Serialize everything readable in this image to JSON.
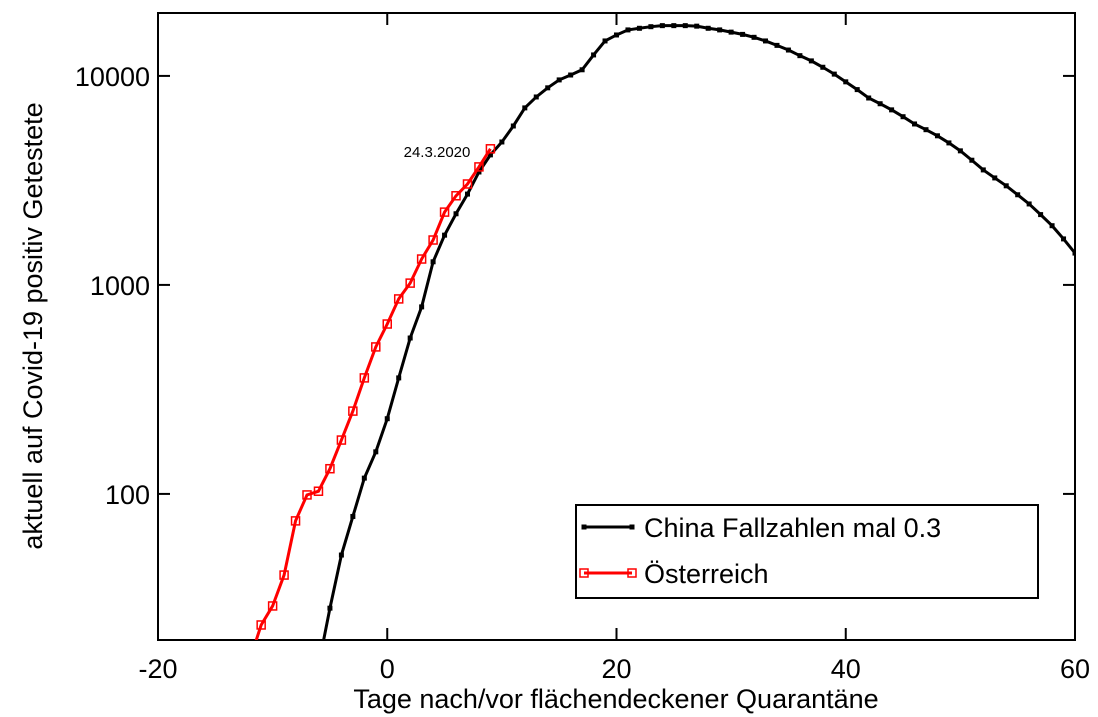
{
  "chart_data": {
    "type": "line",
    "x_label": "Tage nach/vor flächendeckener Quarantäne",
    "y_label": "aktuell auf Covid-19 positiv Getestete",
    "annotation": "24.3.2020",
    "log_y": true,
    "xlim": [
      -20,
      60
    ],
    "xticks": [
      -20,
      0,
      20,
      40,
      60
    ],
    "ylim": [
      20,
      20000
    ],
    "yticks": [
      100,
      1000,
      10000
    ],
    "legend": "lower right",
    "series": [
      {
        "name": "China Fallzahlen mal 0.3",
        "color": "#000000",
        "marker": "filled-square",
        "x": [
          -6,
          -5,
          -4,
          -3,
          -2,
          -1,
          0,
          1,
          2,
          3,
          4,
          5,
          6,
          7,
          8,
          9,
          10,
          11,
          12,
          13,
          14,
          15,
          16,
          17,
          18,
          19,
          20,
          21,
          22,
          23,
          24,
          25,
          26,
          27,
          28,
          29,
          30,
          31,
          32,
          33,
          34,
          35,
          36,
          37,
          38,
          39,
          40,
          41,
          42,
          43,
          44,
          45,
          46,
          47,
          48,
          49,
          50,
          51,
          52,
          53,
          54,
          55,
          56,
          57,
          58,
          59,
          60
        ],
        "values": [
          15,
          28.4,
          51,
          78,
          119,
          159,
          229,
          359,
          557,
          785,
          1290,
          1730,
          2190,
          2720,
          3470,
          4190,
          4830,
          5760,
          7030,
          7930,
          8770,
          9570,
          10100,
          10700,
          12600,
          14700,
          15700,
          16600,
          16900,
          17200,
          17400,
          17400,
          17400,
          17300,
          16900,
          16600,
          16200,
          15800,
          15300,
          14700,
          14000,
          13300,
          12500,
          11800,
          11000,
          10200,
          9370,
          8600,
          7840,
          7360,
          6880,
          6380,
          5890,
          5530,
          5170,
          4780,
          4380,
          3950,
          3550,
          3250,
          2980,
          2700,
          2440,
          2170,
          1920,
          1660,
          1420
        ]
      },
      {
        "name": "Österreich",
        "color": "#ff0000",
        "marker": "open-square",
        "x": [
          -12,
          -11,
          -10,
          -9,
          -8,
          -7,
          -6,
          -5,
          -4,
          -3,
          -2,
          -1,
          0,
          1,
          2,
          3,
          4,
          5,
          6,
          7,
          8,
          9
        ],
        "values": [
          16,
          23.6,
          29.1,
          40.9,
          74.3,
          98.9,
          103,
          132,
          181,
          249,
          359,
          505,
          650,
          857,
          1020,
          1330,
          1640,
          2230,
          2670,
          3040,
          3670,
          4480
        ]
      }
    ]
  }
}
